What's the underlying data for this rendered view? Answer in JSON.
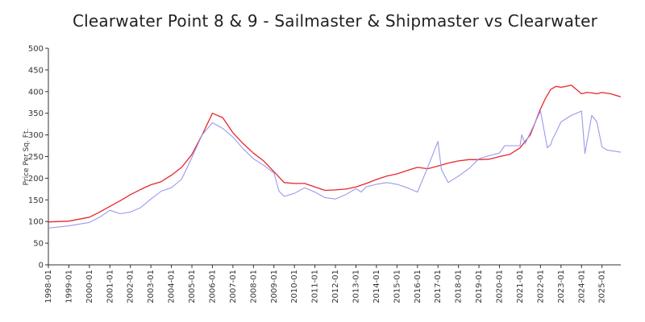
{
  "chart_data": {
    "type": "line",
    "title": "Clearwater Point 8 & 9 - Sailmaster & Shipmaster vs Clearwater",
    "xlabel": "",
    "ylabel": "Price Per Sq. Ft.",
    "ylim": [
      0,
      500
    ],
    "yticks": [
      0,
      50,
      100,
      150,
      200,
      250,
      300,
      350,
      400,
      450,
      500
    ],
    "xlim": [
      "1998-01",
      "2025-12"
    ],
    "xticks": [
      "1998-01",
      "1999-01",
      "2000-01",
      "2001-01",
      "2002-01",
      "2003-01",
      "2004-01",
      "2005-01",
      "2006-01",
      "2007-01",
      "2008-01",
      "2009-01",
      "2010-01",
      "2011-01",
      "2012-01",
      "2013-01",
      "2014-01",
      "2015-01",
      "2016-01",
      "2017-01",
      "2018-01",
      "2019-01",
      "2020-01",
      "2021-01",
      "2022-01",
      "2023-01",
      "2024-01",
      "2025-01"
    ],
    "grid": false,
    "legend": "none",
    "series": [
      {
        "color": "#e8262c",
        "x": [
          "1998-01",
          "1999-01",
          "2000-01",
          "2000-07",
          "2001-01",
          "2001-07",
          "2002-01",
          "2002-07",
          "2003-01",
          "2003-07",
          "2004-01",
          "2004-07",
          "2005-01",
          "2005-07",
          "2006-01",
          "2006-07",
          "2007-01",
          "2007-07",
          "2008-01",
          "2008-07",
          "2009-01",
          "2009-07",
          "2010-01",
          "2010-07",
          "2011-01",
          "2011-07",
          "2012-01",
          "2012-07",
          "2013-01",
          "2013-07",
          "2014-01",
          "2014-07",
          "2015-01",
          "2015-07",
          "2016-01",
          "2016-07",
          "2017-01",
          "2017-07",
          "2018-01",
          "2018-07",
          "2019-01",
          "2019-07",
          "2020-01",
          "2020-07",
          "2021-01",
          "2021-07",
          "2022-01",
          "2022-04",
          "2022-07",
          "2022-10",
          "2023-01",
          "2023-04",
          "2023-07",
          "2023-10",
          "2024-01",
          "2024-04",
          "2024-07",
          "2024-10",
          "2025-01",
          "2025-06",
          "2025-12"
        ],
        "values": [
          99,
          101,
          110,
          122,
          135,
          148,
          162,
          174,
          185,
          192,
          207,
          225,
          255,
          300,
          350,
          340,
          305,
          280,
          258,
          240,
          215,
          190,
          188,
          188,
          180,
          172,
          173,
          175,
          180,
          188,
          197,
          205,
          210,
          218,
          225,
          222,
          228,
          235,
          240,
          243,
          243,
          244,
          250,
          255,
          270,
          300,
          360,
          385,
          405,
          412,
          410,
          412,
          415,
          405,
          395,
          398,
          397,
          395,
          398,
          395,
          388
        ]
      },
      {
        "color": "#9b98ee",
        "x": [
          "1998-01",
          "1999-01",
          "2000-01",
          "2000-07",
          "2001-01",
          "2001-07",
          "2002-01",
          "2002-07",
          "2003-01",
          "2003-07",
          "2004-01",
          "2004-07",
          "2005-01",
          "2005-07",
          "2006-01",
          "2006-07",
          "2007-01",
          "2007-07",
          "2008-01",
          "2008-07",
          "2009-01",
          "2009-04",
          "2009-07",
          "2010-01",
          "2010-07",
          "2011-01",
          "2011-07",
          "2012-01",
          "2012-07",
          "2013-01",
          "2013-04",
          "2013-07",
          "2014-01",
          "2014-07",
          "2015-01",
          "2015-07",
          "2016-01",
          "2016-07",
          "2017-01",
          "2017-03",
          "2017-07",
          "2018-01",
          "2018-07",
          "2019-01",
          "2019-07",
          "2020-01",
          "2020-04",
          "2021-01",
          "2021-02",
          "2021-04",
          "2021-07",
          "2022-01",
          "2022-05",
          "2022-07",
          "2022-08",
          "2022-10",
          "2023-01",
          "2023-07",
          "2024-01",
          "2024-03",
          "2024-07",
          "2024-10",
          "2025-01",
          "2025-04",
          "2025-12"
        ],
        "values": [
          85,
          90,
          98,
          110,
          126,
          118,
          122,
          132,
          152,
          170,
          178,
          198,
          248,
          300,
          328,
          315,
          295,
          268,
          245,
          230,
          212,
          170,
          158,
          165,
          178,
          168,
          155,
          152,
          162,
          176,
          168,
          180,
          186,
          190,
          186,
          178,
          168,
          225,
          285,
          220,
          190,
          205,
          222,
          245,
          252,
          258,
          275,
          275,
          300,
          280,
          305,
          355,
          270,
          278,
          290,
          305,
          330,
          345,
          355,
          257,
          345,
          330,
          272,
          265,
          260
        ]
      }
    ]
  }
}
